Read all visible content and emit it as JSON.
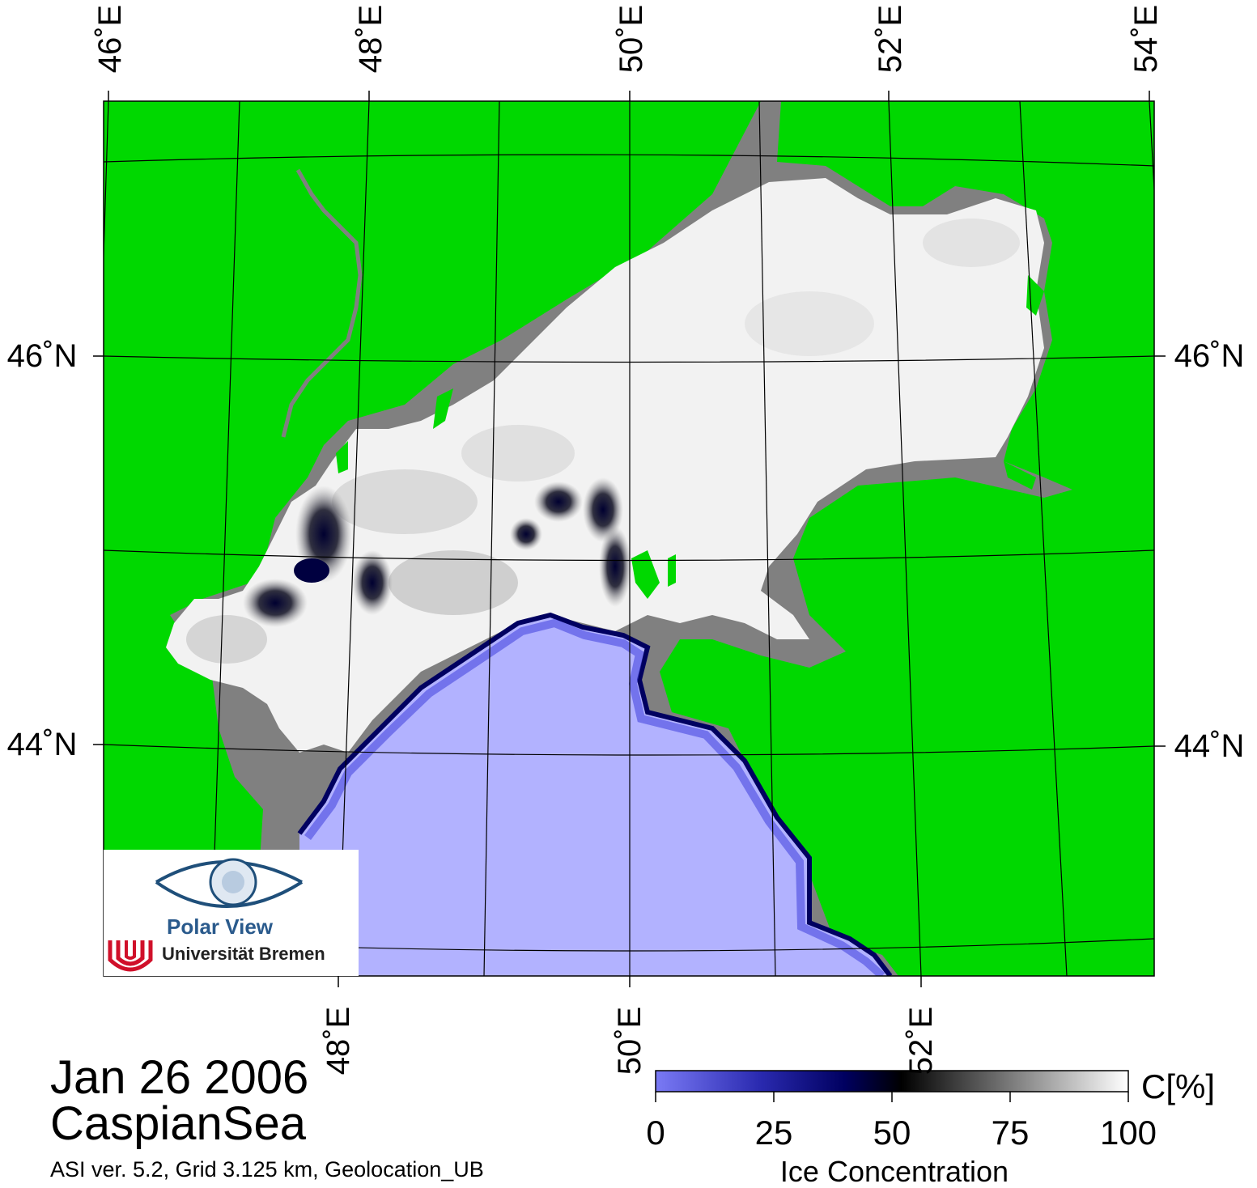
{
  "map": {
    "date": "Jan 26 2006",
    "region": "CaspianSea",
    "meta": "ASI ver. 5.2,  Grid 3.125 km, Geolocation_UB",
    "top_lon_labels": [
      "46˚E",
      "48˚E",
      "50˚E",
      "52˚E",
      "54˚E"
    ],
    "bottom_lon_labels": [
      "48˚E",
      "50˚E",
      "52˚E"
    ],
    "left_lat_labels": [
      "46˚N",
      "44˚N"
    ],
    "right_lat_labels": [
      "46˚N",
      "44˚N"
    ],
    "colors": {
      "land": "#00d800",
      "coast": "#808080",
      "open_water": "#b2b2ff",
      "ice_high": "#f2f2f2",
      "grid": "#000000"
    }
  },
  "colorbar": {
    "title": "Ice Concentration",
    "unit": "C[%]",
    "ticks": [
      "0",
      "25",
      "50",
      "75",
      "100"
    ],
    "stops": [
      "#7070f0",
      "#000070",
      "#000000",
      "#ffffff"
    ]
  },
  "logo": {
    "name": "Polar View",
    "institution": "Universität Bremen"
  }
}
